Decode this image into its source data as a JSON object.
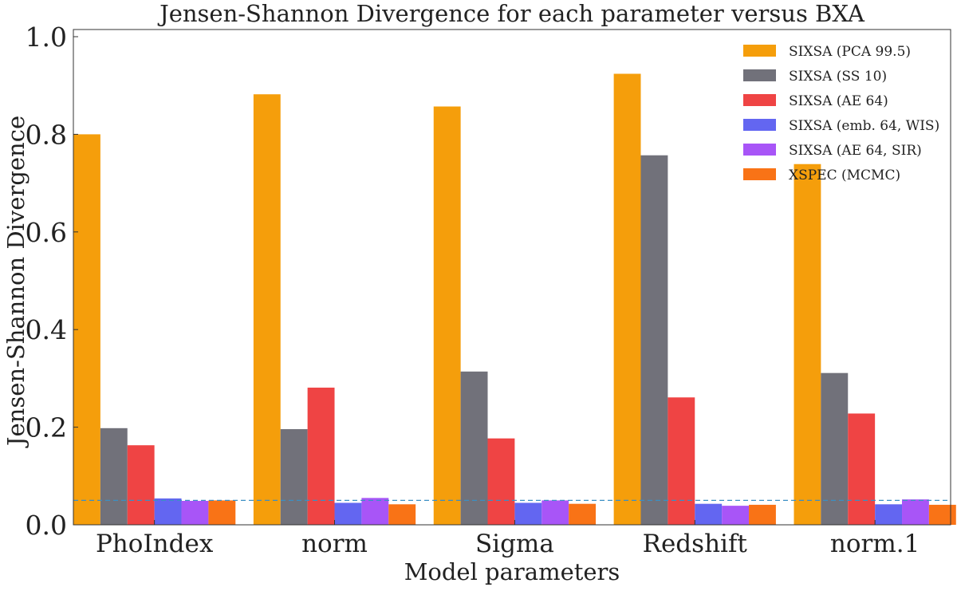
{
  "chart_data": {
    "type": "bar",
    "title": "Jensen-Shannon Divergence for each parameter versus BXA",
    "xlabel": "Model parameters",
    "ylabel": "Jensen-Shannon Divergence",
    "categories": [
      "PhoIndex",
      "norm",
      "Sigma",
      "Redshift",
      "norm.1"
    ],
    "ylim": [
      0,
      1.0
    ],
    "yticks": [
      "0.0",
      "0.2",
      "0.4",
      "0.6",
      "0.8",
      "1.0"
    ],
    "grid": false,
    "legend_position": "top-right",
    "reference_line": {
      "y": 0.05,
      "style": "dashed",
      "color": "#3b8fc4"
    },
    "series": [
      {
        "name": "SIXSA (PCA 99.5)",
        "color": "#f59e0b",
        "values": [
          0.8,
          0.882,
          0.857,
          0.924,
          0.739
        ]
      },
      {
        "name": "SIXSA (SS 10)",
        "color": "#71717a",
        "values": [
          0.198,
          0.196,
          0.314,
          0.757,
          0.311
        ]
      },
      {
        "name": "SIXSA (AE 64)",
        "color": "#ef4444",
        "values": [
          0.163,
          0.281,
          0.177,
          0.261,
          0.228
        ]
      },
      {
        "name": "SIXSA (emb. 64, WIS)",
        "color": "#6366f1",
        "values": [
          0.054,
          0.045,
          0.045,
          0.043,
          0.042
        ]
      },
      {
        "name": "SIXSA (AE 64, SIR)",
        "color": "#a855f7",
        "values": [
          0.049,
          0.055,
          0.05,
          0.039,
          0.052
        ]
      },
      {
        "name": "XSPEC (MCMC)",
        "color": "#f97316",
        "values": [
          0.05,
          0.042,
          0.043,
          0.041,
          0.041
        ]
      }
    ]
  }
}
